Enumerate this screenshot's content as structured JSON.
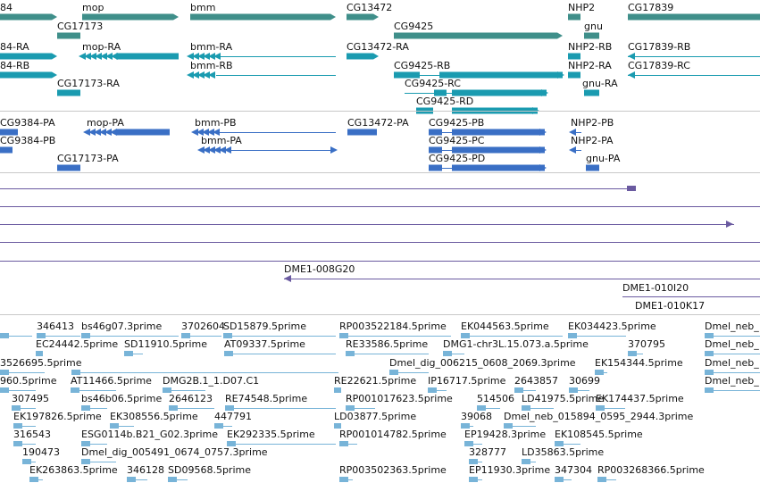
{
  "colors": {
    "gene": "#3f8f8a",
    "transcript": "#1a9bb0",
    "protein": "#3a6fc5",
    "clone": "#6a5aa0",
    "est": "#78b4d8",
    "separator": "#c8c8c8"
  },
  "gene_labels": [
    "84",
    "mop",
    "bmm",
    "CG13472",
    "NHP2",
    "CG17839",
    "CG17173",
    "CG9425",
    "gnu"
  ],
  "transcript_labels": [
    "84-RA",
    "mop-RA",
    "bmm-RA",
    "CG13472-RA",
    "NHP2-RB",
    "CG17839-RB",
    "84-RB",
    "bmm-RB",
    "CG9425-RB",
    "NHP2-RA",
    "CG17839-RC",
    "CG17173-RA",
    "CG9425-RC",
    "gnu-RA",
    "CG9425-RD"
  ],
  "protein_labels": [
    "CG9384-PA",
    "mop-PA",
    "bmm-PB",
    "CG13472-PA",
    "CG9425-PB",
    "NHP2-PB",
    "CG9384-PB",
    "bmm-PA",
    "CG9425-PC",
    "NHP2-PA",
    "CG17173-PA",
    "CG9425-PD",
    "gnu-PA"
  ],
  "clone_labels": [
    "DME1-008G20",
    "DME1-010I20",
    "DME1-010K17"
  ],
  "est_labels": [
    "346413",
    "bs46g07.3prime",
    "3702604",
    "SD15879.5prime",
    "RP003522184.5prime",
    "EK044563.5prime",
    "EK034423.5prime",
    "Dmel_neb_",
    "EC24442.5prime",
    "SD11910.5prime",
    "AT09337.5prime",
    "RE33586.5prime",
    "DMG1-chr3L.15.073.a.5prime",
    "370795",
    "Dmel_neb_",
    "3526695.5prime",
    "Dmel_dig_006215_0608_2069.3prime",
    "EK154344.5prime",
    "Dmel_neb_",
    "960.5prime",
    "AT11466.5prime",
    "DMG2B.1_1.D07.C1",
    "RE22621.5prime",
    "IP16717.5prime",
    "2643857",
    "30699",
    "Dmel_neb_",
    "307495",
    "bs46b06.5prime",
    "2646123",
    "RE74548.5prime",
    "RP001017623.5prime",
    "514506",
    "LD41975.5prime",
    "EK174437.5prime",
    "EK197826.5prime",
    "EK308556.5prime",
    "447791",
    "LD03877.5prime",
    "39068",
    "Dmel_neb_015894_0595_2944.3prime",
    "316543",
    "ESG0114b.B21_G02.3prime",
    "EK292335.5prime",
    "RP001014782.5prime",
    "EP19428.3prime",
    "EK108545.5prime",
    "190473",
    "Dmel_dig_005491_0674_0757.3prime",
    "328777",
    "LD35863.5prime",
    "EK263863.5prime",
    "346128",
    "SD09568.5prime",
    "RP003502363.5prime",
    "EP11930.3prime",
    "347304",
    "RP003268366.5prime"
  ]
}
